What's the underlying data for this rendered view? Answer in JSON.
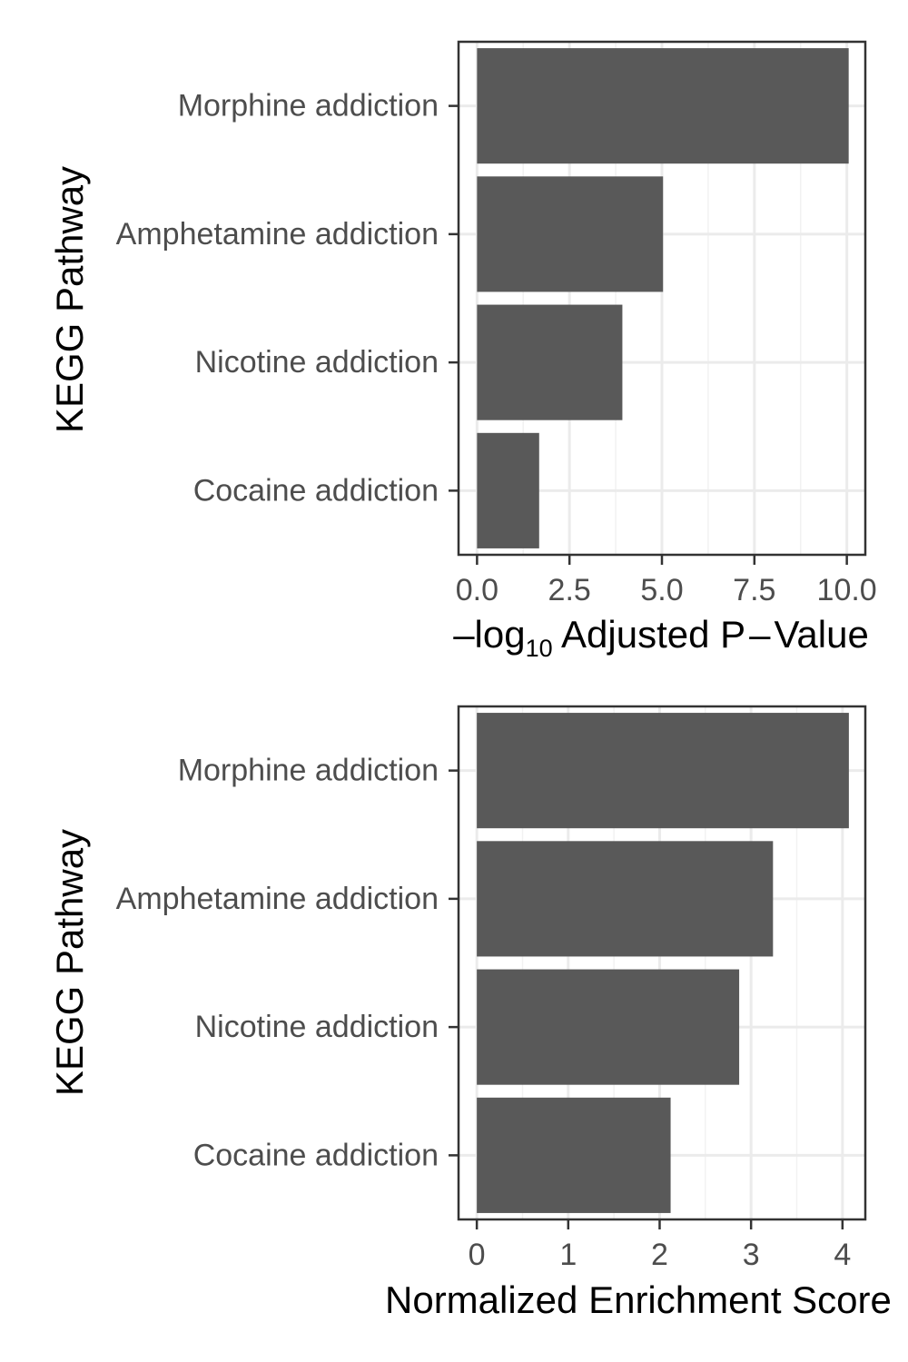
{
  "chart_data": [
    {
      "type": "bar",
      "orientation": "horizontal",
      "categories": [
        "Morphine addiction",
        "Amphetamine addiction",
        "Nicotine addiction",
        "Cocaine addiction"
      ],
      "values": [
        10.05,
        5.03,
        3.93,
        1.68
      ],
      "xlabel": {
        "prefix": "–",
        "main": "log",
        "subscript": "10",
        "rest": " Adjusted P",
        "dash": "–",
        "tail": "Value"
      },
      "ylabel": "KEGG Pathway",
      "xlim": [
        -0.5,
        10.5
      ],
      "xticks": [
        0,
        2.5,
        5,
        7.5,
        10
      ],
      "xtick_labels": [
        "0.0",
        "2.5",
        "5.0",
        "7.5",
        "10.0"
      ],
      "grid": true,
      "bar_color": "#595959"
    },
    {
      "type": "bar",
      "orientation": "horizontal",
      "categories": [
        "Morphine addiction",
        "Amphetamine addiction",
        "Nicotine addiction",
        "Cocaine addiction"
      ],
      "values": [
        4.07,
        3.24,
        2.87,
        2.12
      ],
      "xlabel": "Normalized Enrichment Score",
      "ylabel": "KEGG Pathway",
      "xlim": [
        -0.2,
        4.25
      ],
      "xticks": [
        0,
        1,
        2,
        3,
        4
      ],
      "xtick_labels": [
        "0",
        "1",
        "2",
        "3",
        "4"
      ],
      "grid": true,
      "bar_color": "#595959"
    }
  ]
}
